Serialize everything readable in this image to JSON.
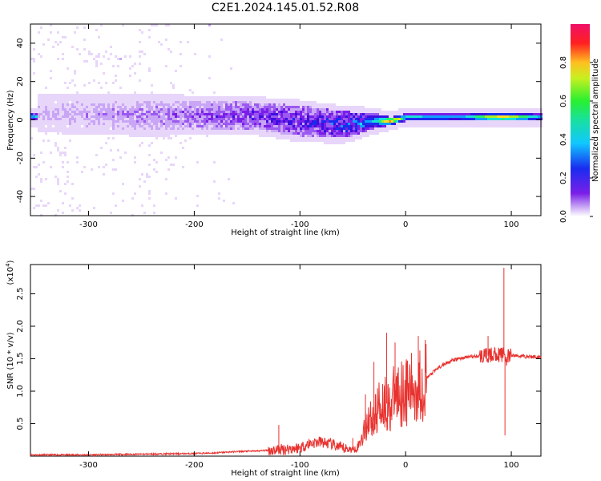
{
  "title": "C2E1.2024.145.01.52.R08",
  "colors": {
    "snr_line": "#e8322f",
    "axis": "#000000",
    "spectro_palette": [
      "#ffffff",
      "#e8d6fa",
      "#c9a6f5",
      "#9b59f0",
      "#7a1fe8",
      "#3a10e0",
      "#1a2cf0",
      "#10a0ff",
      "#18e0d8",
      "#28f068",
      "#a8f020",
      "#ffe020",
      "#ff9010",
      "#ff2020",
      "#f01068"
    ]
  },
  "chart_data": [
    {
      "type": "heatmap",
      "name": "spectrogram",
      "xlabel": "Height of straight line (km)",
      "ylabel": "Frequency (Hz)",
      "xlim": [
        -355,
        128
      ],
      "ylim": [
        -50,
        50
      ],
      "xticks": [
        -300,
        -200,
        -100,
        0,
        100
      ],
      "yticks": [
        -40,
        -20,
        0,
        20,
        40
      ],
      "colorbar": {
        "label": "Normalized spectral amplitude",
        "range": [
          0.0,
          1.0
        ],
        "ticks": [
          0.0,
          0.2,
          0.4,
          0.6,
          0.8
        ]
      },
      "signal_band": {
        "description_points": [
          {
            "x": -350,
            "center_hz": 4,
            "halfwidth_hz": 7,
            "amp": 0.15
          },
          {
            "x": -250,
            "center_hz": 3,
            "halfwidth_hz": 8,
            "amp": 0.2
          },
          {
            "x": -150,
            "center_hz": 3,
            "halfwidth_hz": 7,
            "amp": 0.3
          },
          {
            "x": -100,
            "center_hz": 0,
            "halfwidth_hz": 8,
            "amp": 0.35
          },
          {
            "x": -60,
            "center_hz": -2,
            "halfwidth_hz": 7,
            "amp": 0.4
          },
          {
            "x": -30,
            "center_hz": 0,
            "halfwidth_hz": 4,
            "amp": 0.55
          },
          {
            "x": -15,
            "center_hz": 0,
            "halfwidth_hz": 2,
            "amp": 0.9
          },
          {
            "x": 0,
            "center_hz": 2,
            "halfwidth_hz": 2,
            "amp": 0.6
          },
          {
            "x": 50,
            "center_hz": 2,
            "halfwidth_hz": 2,
            "amp": 0.55
          },
          {
            "x": 90,
            "center_hz": 2,
            "halfwidth_hz": 2,
            "amp": 0.85
          },
          {
            "x": 128,
            "center_hz": 2,
            "halfwidth_hz": 2,
            "amp": 0.55
          }
        ],
        "noise_region_x": [
          -355,
          -150
        ]
      }
    },
    {
      "type": "line",
      "name": "snr",
      "xlabel": "Height of straight line (km)",
      "ylabel": "SNR (10 * v/v)",
      "yscale_label": "(x10",
      "yscale_exp": "4",
      "yscale_close": ")",
      "xlim": [
        -355,
        128
      ],
      "ylim": [
        0,
        2.95
      ],
      "xticks": [
        -300,
        -200,
        -100,
        0,
        100
      ],
      "yticks": [
        0.5,
        1.0,
        1.5,
        2.0,
        2.5
      ],
      "ytick_labels": [
        "0.5",
        "1.0",
        "1.5",
        "2.0",
        "2.5"
      ],
      "series": [
        {
          "x": [
            -355,
            -300,
            -250,
            -200,
            -180,
            -160,
            -140,
            -120,
            -100,
            -90,
            -80,
            -70,
            -60,
            -50,
            -45,
            -40,
            -35,
            -30,
            -25,
            -20,
            -15,
            -10,
            -5,
            0,
            10,
            20,
            30,
            40,
            50,
            60,
            70,
            80,
            85,
            90,
            93,
            95,
            100,
            110,
            120,
            128
          ],
          "y": [
            0.02,
            0.02,
            0.03,
            0.04,
            0.05,
            0.07,
            0.08,
            0.1,
            0.13,
            0.2,
            0.22,
            0.18,
            0.12,
            0.1,
            0.15,
            0.35,
            0.6,
            0.55,
            0.8,
            0.85,
            0.75,
            0.95,
            1.0,
            1.0,
            1.05,
            1.2,
            1.35,
            1.45,
            1.5,
            1.53,
            1.54,
            1.55,
            1.58,
            1.55,
            1.6,
            1.5,
            1.55,
            1.54,
            1.53,
            1.53
          ]
        }
      ],
      "spikes": [
        {
          "x": -120,
          "y": 0.48
        },
        {
          "x": -50,
          "y": 0.28
        },
        {
          "x": -38,
          "y": 0.95
        },
        {
          "x": -30,
          "y": 1.45
        },
        {
          "x": -18,
          "y": 1.9
        },
        {
          "x": -10,
          "y": 1.75
        },
        {
          "x": 12,
          "y": 1.85
        },
        {
          "x": 78,
          "y": 1.85
        },
        {
          "x": 93,
          "y": 2.9
        },
        {
          "x": 94,
          "y": 0.32
        }
      ]
    }
  ]
}
